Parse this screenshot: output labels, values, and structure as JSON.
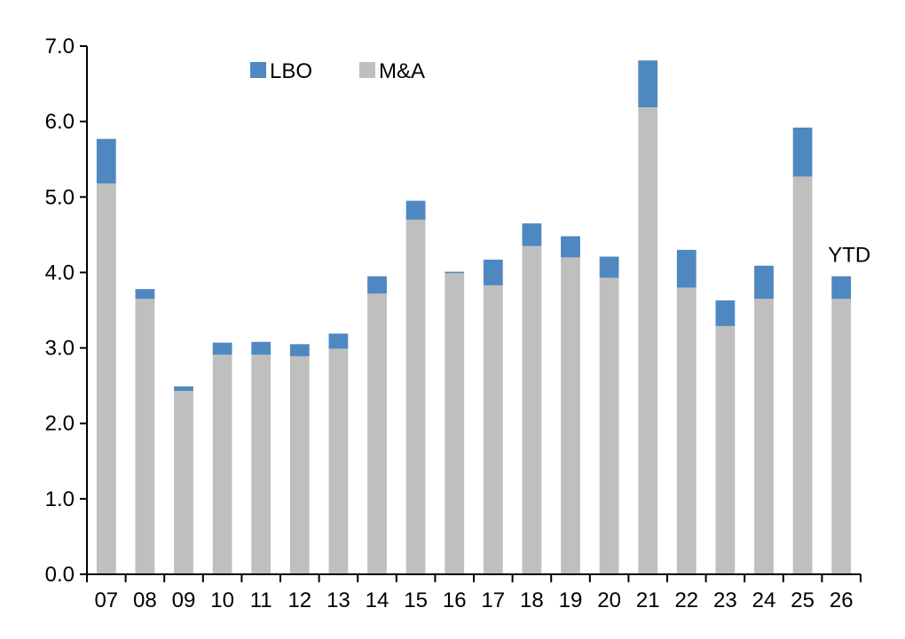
{
  "chart_data": {
    "type": "bar",
    "stacked": true,
    "categories": [
      "07",
      "08",
      "09",
      "10",
      "11",
      "12",
      "13",
      "14",
      "15",
      "16",
      "17",
      "18",
      "19",
      "20",
      "21",
      "22",
      "23",
      "24",
      "25",
      "26"
    ],
    "series": [
      {
        "name": "M&A",
        "color": "#bfbfbf",
        "values": [
          5.18,
          3.65,
          2.43,
          2.91,
          2.91,
          2.89,
          2.99,
          3.72,
          4.7,
          3.99,
          3.83,
          4.35,
          4.2,
          3.93,
          6.19,
          3.8,
          3.29,
          3.65,
          5.27,
          3.65
        ]
      },
      {
        "name": "LBO",
        "color": "#4f88c0",
        "values": [
          0.59,
          0.13,
          0.06,
          0.16,
          0.17,
          0.16,
          0.2,
          0.23,
          0.25,
          0.02,
          0.34,
          0.3,
          0.28,
          0.28,
          0.62,
          0.5,
          0.34,
          0.44,
          0.65,
          0.3
        ]
      }
    ],
    "legend_order": [
      "LBO",
      "M&A"
    ],
    "legend_position": "top-left",
    "ylim": [
      0,
      7
    ],
    "yticks": [
      "0.0",
      "1.0",
      "2.0",
      "3.0",
      "4.0",
      "5.0",
      "6.0",
      "7.0"
    ],
    "ytick_values": [
      0,
      1,
      2,
      3,
      4,
      5,
      6,
      7
    ],
    "grid": false,
    "annotations": [
      {
        "text": "YTD",
        "category": "26"
      }
    ],
    "title": "",
    "xlabel": "",
    "ylabel": ""
  }
}
